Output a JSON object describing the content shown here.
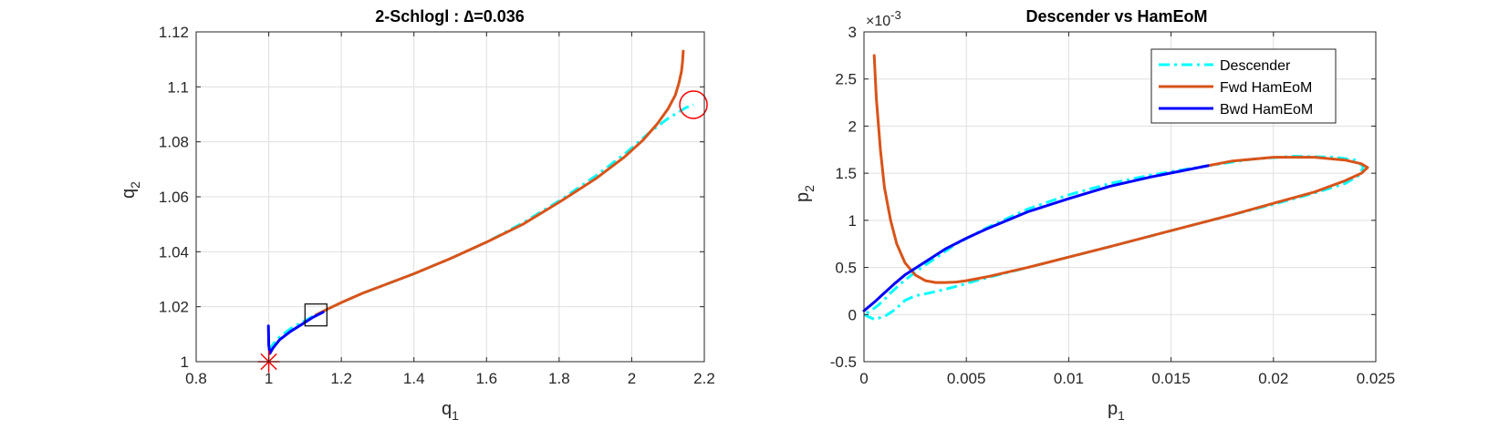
{
  "chart_data": [
    {
      "type": "line",
      "title": "2-Schlogl : ∆=0.036",
      "xlabel": "q",
      "xlabel_sub": "1",
      "ylabel": "q",
      "ylabel_sub": "2",
      "xlim": [
        0.8,
        2.2
      ],
      "ylim": [
        1.0,
        1.12
      ],
      "xticks": [
        0.8,
        1,
        1.2,
        1.4,
        1.6,
        1.8,
        2,
        2.2
      ],
      "xtick_labels": [
        "0.8",
        "1",
        "1.2",
        "1.4",
        "1.6",
        "1.8",
        "2",
        "2.2"
      ],
      "yticks": [
        1,
        1.02,
        1.04,
        1.06,
        1.08,
        1.1,
        1.12
      ],
      "ytick_labels": [
        "1",
        "1.02",
        "1.04",
        "1.06",
        "1.08",
        "1.1",
        "1.12"
      ],
      "grid": true,
      "colors": {
        "descender": "#00ffff",
        "fwd": "#d95319",
        "bwd": "#0000ff",
        "markers": "#ff0000",
        "box": "#000000"
      },
      "series": [
        {
          "name": "Descender",
          "style": "dashdot",
          "x": [
            1.0,
            1.01,
            1.03,
            1.06,
            1.1,
            1.13,
            1.16,
            1.2,
            1.26,
            1.3,
            1.4,
            1.5,
            1.6,
            1.7,
            1.8,
            1.9,
            1.98,
            2.05,
            2.1,
            2.15,
            2.17
          ],
          "y": [
            1.004,
            1.006,
            1.009,
            1.012,
            1.015,
            1.017,
            1.019,
            1.0215,
            1.025,
            1.027,
            1.032,
            1.0375,
            1.0435,
            1.0505,
            1.0585,
            1.0675,
            1.0755,
            1.0835,
            1.0885,
            1.0925,
            1.0935
          ]
        },
        {
          "name": "Fwd HamEoM",
          "style": "solid",
          "x": [
            1.13,
            1.16,
            1.2,
            1.26,
            1.3,
            1.4,
            1.5,
            1.6,
            1.7,
            1.8,
            1.9,
            1.98,
            2.03,
            2.07,
            2.1,
            2.12,
            2.13,
            2.137,
            2.14,
            2.142
          ],
          "y": [
            1.017,
            1.019,
            1.0215,
            1.025,
            1.027,
            1.032,
            1.0375,
            1.0435,
            1.05,
            1.058,
            1.0665,
            1.0745,
            1.0805,
            1.0865,
            1.092,
            1.097,
            1.1013,
            1.1055,
            1.109,
            1.113
          ]
        },
        {
          "name": "Bwd HamEoM",
          "style": "solid",
          "x": [
            0.999,
            1.0,
            1.003,
            1.012,
            1.03,
            1.06,
            1.09,
            1.12,
            1.15
          ],
          "y": [
            1.013,
            1.006,
            1.003,
            1.005,
            1.008,
            1.011,
            1.0135,
            1.016,
            1.018
          ]
        }
      ],
      "markers": [
        {
          "name": "fixed-point-star",
          "x": 1.0,
          "y": 1.0
        },
        {
          "name": "start-circle",
          "x": 2.17,
          "y": 1.0935
        },
        {
          "name": "switch-square",
          "x": 1.13,
          "y": 1.017
        }
      ]
    },
    {
      "type": "line",
      "title": "Descender vs HamEoM",
      "xlabel": "p",
      "xlabel_sub": "1",
      "ylabel": "p",
      "ylabel_sub": "2",
      "y_exponent_prefix": "×10",
      "y_exponent": "-3",
      "xlim": [
        0,
        0.025
      ],
      "ylim": [
        -0.5,
        3.0
      ],
      "xticks": [
        0,
        0.005,
        0.01,
        0.015,
        0.02,
        0.025
      ],
      "xtick_labels": [
        "0",
        "0.005",
        "0.01",
        "0.015",
        "0.02",
        "0.025"
      ],
      "yticks": [
        -0.5,
        0,
        0.5,
        1,
        1.5,
        2,
        2.5,
        3
      ],
      "ytick_labels": [
        "-0.5",
        "0",
        "0.5",
        "1",
        "1.5",
        "2",
        "2.5",
        "3"
      ],
      "grid": true,
      "legend_position": "top-right",
      "colors": {
        "descender": "#00ffff",
        "fwd": "#d95319",
        "bwd": "#0000ff"
      },
      "series": [
        {
          "name": "Descender",
          "style": "dashdot",
          "x": [
            0,
            0.0005,
            0.001,
            0.0015,
            0.002,
            0.0025,
            0.003,
            0.004,
            0.005,
            0.006,
            0.008,
            0.01,
            0.012,
            0.015,
            0.018,
            0.02,
            0.022,
            0.0235,
            0.0242,
            0.0244,
            0.024,
            0.023,
            0.021,
            0.019,
            0.0165,
            0.014,
            0.012,
            0.01,
            0.008,
            0.006,
            0.0045,
            0.0035,
            0.0025,
            0.0018,
            0.0013,
            0.001,
            0.0007,
            0.0004,
            0
          ],
          "y": [
            0,
            -0.05,
            -0.02,
            0.05,
            0.15,
            0.2,
            0.22,
            0.27,
            0.33,
            0.39,
            0.5,
            0.61,
            0.72,
            0.89,
            1.06,
            1.17,
            1.29,
            1.39,
            1.48,
            1.57,
            1.64,
            1.67,
            1.68,
            1.65,
            1.57,
            1.48,
            1.39,
            1.27,
            1.12,
            0.92,
            0.75,
            0.6,
            0.45,
            0.33,
            0.23,
            0.16,
            0.1,
            0.05,
            0
          ]
        },
        {
          "name": "Fwd HamEoM",
          "style": "solid",
          "x": [
            0.0005,
            0.0006,
            0.0008,
            0.001,
            0.0013,
            0.0016,
            0.002,
            0.0025,
            0.003,
            0.0035,
            0.004,
            0.0045,
            0.005,
            0.006,
            0.008,
            0.01,
            0.012,
            0.015,
            0.018,
            0.02,
            0.022,
            0.0235,
            0.0243,
            0.0246,
            0.0243,
            0.0235,
            0.022,
            0.02,
            0.018,
            0.0168
          ],
          "y": [
            2.75,
            2.3,
            1.75,
            1.35,
            1.0,
            0.75,
            0.55,
            0.42,
            0.36,
            0.34,
            0.34,
            0.345,
            0.36,
            0.4,
            0.5,
            0.61,
            0.72,
            0.89,
            1.06,
            1.18,
            1.3,
            1.42,
            1.5,
            1.56,
            1.6,
            1.64,
            1.67,
            1.67,
            1.63,
            1.58
          ]
        },
        {
          "name": "Bwd HamEoM",
          "style": "solid",
          "x": [
            0,
            0.0005,
            0.001,
            0.0015,
            0.002,
            0.003,
            0.004,
            0.005,
            0.006,
            0.008,
            0.01,
            0.012,
            0.014,
            0.0168
          ],
          "y": [
            0.04,
            0.13,
            0.23,
            0.33,
            0.42,
            0.56,
            0.7,
            0.81,
            0.91,
            1.09,
            1.23,
            1.36,
            1.46,
            1.58
          ]
        }
      ]
    }
  ]
}
